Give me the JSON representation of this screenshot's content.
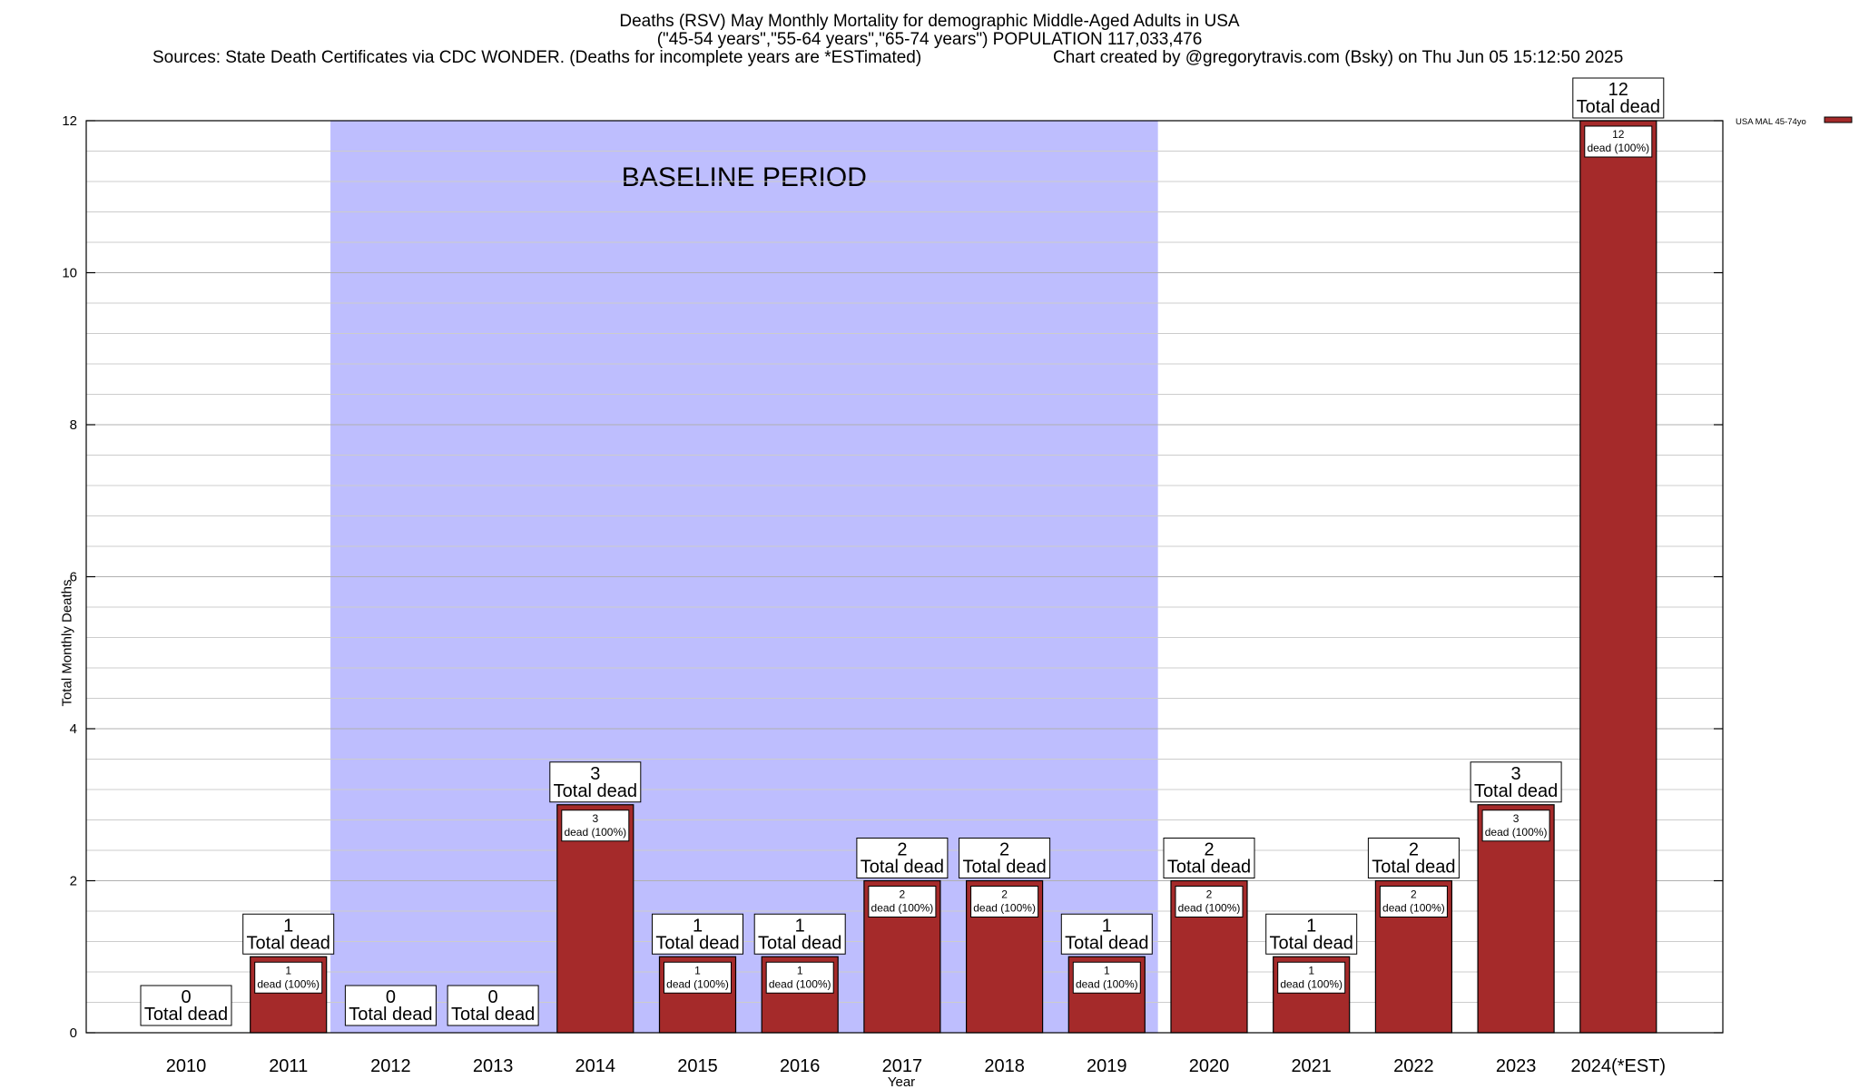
{
  "title": {
    "line1": "Deaths (RSV) May Monthly Mortality for demographic Middle-Aged Adults in USA",
    "line2": "(\"45-54 years\",\"55-64 years\",\"65-74 years\") POPULATION 117,033,476",
    "line3_left": "Sources: State Death Certificates via CDC WONDER. (Deaths for incomplete years are *ESTimated)",
    "line3_right": "Chart created by @gregorytravis.com (Bsky) on Thu Jun 05 15:12:50 2025"
  },
  "colors": {
    "bar": "#a52a2a",
    "baseline_shade": "#bebefe",
    "grid": "#cccccc"
  },
  "chart_data": {
    "type": "bar",
    "title": "Deaths (RSV) May Monthly Mortality for demographic Middle-Aged Adults in USA",
    "xlabel": "Year",
    "ylabel": "Total Monthly Deaths",
    "ylim": [
      0,
      12
    ],
    "yticks": [
      0,
      2,
      4,
      6,
      8,
      10,
      12
    ],
    "grid": true,
    "legend_position": "top-right",
    "categories": [
      "2010",
      "2011",
      "2012",
      "2013",
      "2014",
      "2015",
      "2016",
      "2017",
      "2018",
      "2019",
      "2020",
      "2021",
      "2022",
      "2023",
      "2024(*EST)"
    ],
    "series": [
      {
        "name": "USA MAL 45-74yo",
        "values": [
          0,
          1,
          0,
          0,
          3,
          1,
          1,
          2,
          2,
          1,
          2,
          1,
          2,
          3,
          12
        ]
      }
    ],
    "total_label_suffix": "Total dead",
    "inner_label_suffix": "dead (100%)",
    "baseline_period": {
      "label": "BASELINE PERIOD",
      "start_category": "2012",
      "end_category": "2019"
    }
  }
}
